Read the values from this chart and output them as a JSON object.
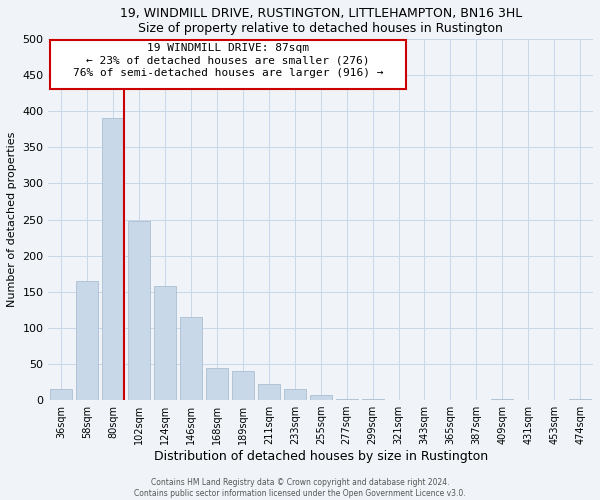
{
  "title": "19, WINDMILL DRIVE, RUSTINGTON, LITTLEHAMPTON, BN16 3HL",
  "subtitle": "Size of property relative to detached houses in Rustington",
  "xlabel": "Distribution of detached houses by size in Rustington",
  "ylabel": "Number of detached properties",
  "bar_labels": [
    "36sqm",
    "58sqm",
    "80sqm",
    "102sqm",
    "124sqm",
    "146sqm",
    "168sqm",
    "189sqm",
    "211sqm",
    "233sqm",
    "255sqm",
    "277sqm",
    "299sqm",
    "321sqm",
    "343sqm",
    "365sqm",
    "387sqm",
    "409sqm",
    "431sqm",
    "453sqm",
    "474sqm"
  ],
  "bar_values": [
    15,
    165,
    390,
    248,
    158,
    115,
    45,
    40,
    22,
    16,
    7,
    2,
    1,
    0,
    0,
    0,
    0,
    2,
    0,
    0,
    2
  ],
  "bar_color": "#c8d8e8",
  "bar_edge_color": "#a0b8cc",
  "vline_color": "#cc0000",
  "vline_pos": 2.43,
  "annotation_title": "19 WINDMILL DRIVE: 87sqm",
  "annotation_line1": "← 23% of detached houses are smaller (276)",
  "annotation_line2": "76% of semi-detached houses are larger (916) →",
  "annotation_box_color": "#cc0000",
  "annotation_box_facecolor": "#ffffff",
  "ylim": [
    0,
    500
  ],
  "yticks": [
    0,
    50,
    100,
    150,
    200,
    250,
    300,
    350,
    400,
    450,
    500
  ],
  "footer1": "Contains HM Land Registry data © Crown copyright and database right 2024.",
  "footer2": "Contains public sector information licensed under the Open Government Licence v3.0.",
  "bg_color": "#f0f4f8",
  "grid_color": "#c8d8e8"
}
